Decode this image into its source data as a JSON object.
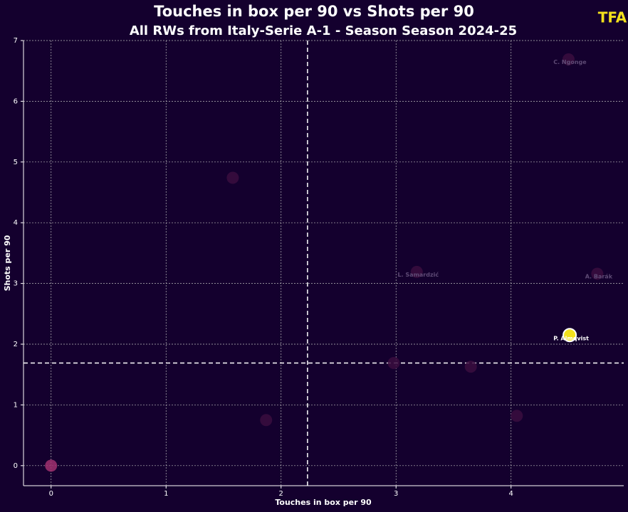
{
  "chart_data": {
    "type": "scatter",
    "title": "Touches in box per 90 vs Shots per 90",
    "subtitle": "All RWs from Italy-Serie A-1 - Season Season 2024-25",
    "logo": "TFA",
    "x_label": "Touches in box per 90",
    "y_label": "Shots per 90",
    "xlim": [
      -0.24,
      4.98
    ],
    "ylim": [
      -0.33,
      7.0
    ],
    "xticks": [
      0,
      1,
      2,
      3,
      4
    ],
    "yticks": [
      0,
      1,
      2,
      3,
      4,
      5,
      6,
      7
    ],
    "grid": true,
    "xline": 2.23,
    "yline": 1.69,
    "series": [
      {
        "colors": [
          "#a0306e",
          "#3a0d3e",
          "#3a0d3e",
          "#3a0d3e",
          "#3a0d3e",
          "#3a0d3e",
          "#3a0d3e",
          "#3a0d3e",
          "#3a0d3e"
        ],
        "label_color": "#5e4a75",
        "x": [
          0,
          1.58,
          1.87,
          2.98,
          3.18,
          3.65,
          4.05,
          4.5,
          4.75
        ],
        "y": [
          0,
          4.74,
          0.75,
          1.69,
          3.19,
          1.63,
          0.82,
          6.69,
          3.16
        ],
        "labels": [
          null,
          null,
          null,
          null,
          "L. Samardzić",
          null,
          null,
          "C. Ngonge",
          "A. Barák"
        ]
      },
      {
        "colors": [
          "#f2e01c"
        ],
        "label_color": "#ffffff",
        "x": [
          4.51
        ],
        "y": [
          2.15
        ],
        "labels": [
          "P. Almqvist"
        ]
      }
    ]
  }
}
